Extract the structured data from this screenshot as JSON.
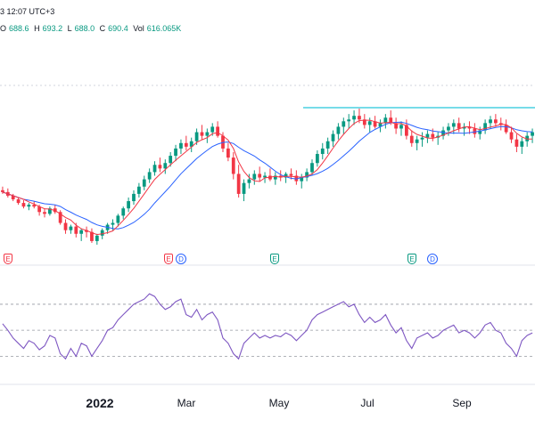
{
  "header": {
    "datetime": "3 12:07 UTC+3"
  },
  "ohlc": {
    "o_label": "O",
    "o": "688.6",
    "h_label": "H",
    "h": "693.2",
    "l_label": "L",
    "l": "688.0",
    "c_label": "C",
    "c": "690.4",
    "vol_label": "Vol",
    "vol": "616.065K"
  },
  "time_axis": {
    "year": "2022",
    "months": [
      "Mar",
      "May",
      "Jul",
      "Sep"
    ]
  },
  "events": [
    {
      "type": "earnings",
      "label": "E",
      "color": "#f23645"
    },
    {
      "type": "earnings",
      "label": "E",
      "color": "#f23645"
    },
    {
      "type": "dividend",
      "label": "D",
      "color": "#2962ff"
    },
    {
      "type": "earnings",
      "label": "E",
      "color": "#089981"
    },
    {
      "type": "earnings",
      "label": "E",
      "color": "#089981"
    },
    {
      "type": "dividend",
      "label": "D",
      "color": "#2962ff"
    }
  ],
  "colors": {
    "up": "#089981",
    "down": "#f23645",
    "ma_fast": "#f23645",
    "ma_slow": "#2962ff",
    "resistance": "#26c6da",
    "rsi": "#7e57c2",
    "grid_dash": "#9598a1"
  },
  "chart_data": {
    "type": "candlestick",
    "series": [
      {
        "name": "price",
        "values": [
          [
            688,
            692,
            684,
            686
          ],
          [
            686,
            690,
            680,
            682
          ],
          [
            682,
            684,
            676,
            678
          ],
          [
            678,
            680,
            672,
            674
          ],
          [
            674,
            677,
            668,
            670
          ],
          [
            670,
            674,
            666,
            672
          ],
          [
            672,
            676,
            668,
            670
          ],
          [
            670,
            672,
            660,
            664
          ],
          [
            664,
            668,
            658,
            662
          ],
          [
            662,
            670,
            660,
            668
          ],
          [
            668,
            672,
            662,
            664
          ],
          [
            664,
            666,
            650,
            652
          ],
          [
            652,
            656,
            640,
            644
          ],
          [
            644,
            650,
            640,
            648
          ],
          [
            648,
            652,
            636,
            640
          ],
          [
            640,
            646,
            632,
            644
          ],
          [
            644,
            648,
            636,
            642
          ],
          [
            642,
            646,
            630,
            632
          ],
          [
            632,
            640,
            628,
            638
          ],
          [
            638,
            646,
            634,
            644
          ],
          [
            644,
            652,
            640,
            650
          ],
          [
            650,
            656,
            644,
            652
          ],
          [
            652,
            662,
            648,
            660
          ],
          [
            660,
            670,
            656,
            668
          ],
          [
            668,
            680,
            664,
            676
          ],
          [
            676,
            688,
            672,
            684
          ],
          [
            684,
            696,
            680,
            692
          ],
          [
            692,
            704,
            688,
            700
          ],
          [
            700,
            712,
            696,
            708
          ],
          [
            708,
            720,
            704,
            716
          ],
          [
            716,
            724,
            708,
            712
          ],
          [
            712,
            722,
            706,
            718
          ],
          [
            718,
            730,
            714,
            726
          ],
          [
            726,
            738,
            720,
            734
          ],
          [
            734,
            744,
            728,
            740
          ],
          [
            740,
            748,
            732,
            736
          ],
          [
            736,
            746,
            730,
            742
          ],
          [
            742,
            756,
            738,
            752
          ],
          [
            752,
            760,
            744,
            748
          ],
          [
            748,
            756,
            740,
            752
          ],
          [
            752,
            762,
            748,
            758
          ],
          [
            758,
            764,
            746,
            748
          ],
          [
            748,
            752,
            730,
            734
          ],
          [
            734,
            740,
            720,
            724
          ],
          [
            724,
            730,
            700,
            706
          ],
          [
            706,
            716,
            680,
            684
          ],
          [
            684,
            700,
            676,
            696
          ],
          [
            696,
            706,
            690,
            700
          ],
          [
            700,
            710,
            694,
            706
          ],
          [
            706,
            714,
            698,
            702
          ],
          [
            702,
            708,
            696,
            704
          ],
          [
            704,
            712,
            698,
            700
          ],
          [
            700,
            708,
            694,
            704
          ],
          [
            704,
            710,
            698,
            702
          ],
          [
            702,
            708,
            696,
            706
          ],
          [
            706,
            712,
            700,
            704
          ],
          [
            704,
            710,
            694,
            698
          ],
          [
            698,
            706,
            690,
            702
          ],
          [
            702,
            712,
            698,
            708
          ],
          [
            708,
            722,
            704,
            718
          ],
          [
            718,
            732,
            714,
            728
          ],
          [
            728,
            740,
            722,
            734
          ],
          [
            734,
            746,
            728,
            742
          ],
          [
            742,
            754,
            736,
            750
          ],
          [
            750,
            762,
            744,
            758
          ],
          [
            758,
            768,
            750,
            764
          ],
          [
            764,
            772,
            756,
            766
          ],
          [
            766,
            776,
            760,
            770
          ],
          [
            770,
            778,
            762,
            766
          ],
          [
            766,
            772,
            756,
            760
          ],
          [
            760,
            768,
            752,
            764
          ],
          [
            764,
            770,
            756,
            758
          ],
          [
            758,
            766,
            752,
            762
          ],
          [
            762,
            772,
            756,
            768
          ],
          [
            768,
            776,
            760,
            762
          ],
          [
            762,
            768,
            750,
            756
          ],
          [
            756,
            764,
            748,
            760
          ],
          [
            760,
            766,
            744,
            748
          ],
          [
            748,
            754,
            736,
            740
          ],
          [
            740,
            748,
            732,
            744
          ],
          [
            744,
            752,
            736,
            746
          ],
          [
            746,
            754,
            740,
            750
          ],
          [
            750,
            756,
            742,
            746
          ],
          [
            746,
            752,
            738,
            748
          ],
          [
            748,
            758,
            744,
            754
          ],
          [
            754,
            762,
            748,
            758
          ],
          [
            758,
            766,
            750,
            762
          ],
          [
            762,
            768,
            752,
            756
          ],
          [
            756,
            762,
            748,
            758
          ],
          [
            758,
            764,
            750,
            756
          ],
          [
            756,
            762,
            746,
            750
          ],
          [
            750,
            758,
            744,
            754
          ],
          [
            754,
            766,
            750,
            762
          ],
          [
            762,
            770,
            756,
            766
          ],
          [
            766,
            772,
            758,
            762
          ],
          [
            762,
            768,
            754,
            760
          ],
          [
            760,
            766,
            750,
            752
          ],
          [
            752,
            758,
            740,
            744
          ],
          [
            744,
            750,
            730,
            736
          ],
          [
            736,
            746,
            728,
            742
          ],
          [
            742,
            752,
            736,
            748
          ],
          [
            748,
            756,
            740,
            752
          ]
        ]
      },
      {
        "name": "rsi",
        "values": [
          55,
          50,
          44,
          40,
          36,
          42,
          40,
          35,
          38,
          46,
          44,
          32,
          28,
          36,
          30,
          40,
          38,
          30,
          36,
          42,
          50,
          52,
          58,
          62,
          66,
          70,
          72,
          74,
          78,
          76,
          70,
          66,
          68,
          72,
          74,
          62,
          60,
          66,
          58,
          62,
          64,
          58,
          44,
          40,
          32,
          28,
          40,
          44,
          48,
          44,
          46,
          44,
          46,
          45,
          48,
          46,
          42,
          46,
          50,
          58,
          62,
          64,
          66,
          68,
          70,
          72,
          68,
          70,
          62,
          56,
          60,
          56,
          58,
          62,
          54,
          48,
          52,
          42,
          36,
          44,
          46,
          48,
          44,
          46,
          50,
          52,
          54,
          48,
          50,
          48,
          44,
          48,
          54,
          56,
          50,
          48,
          40,
          36,
          30,
          42,
          46,
          48
        ]
      }
    ],
    "rsi_levels": [
      70,
      50,
      30
    ],
    "xlabel": "",
    "ylabel": ""
  }
}
